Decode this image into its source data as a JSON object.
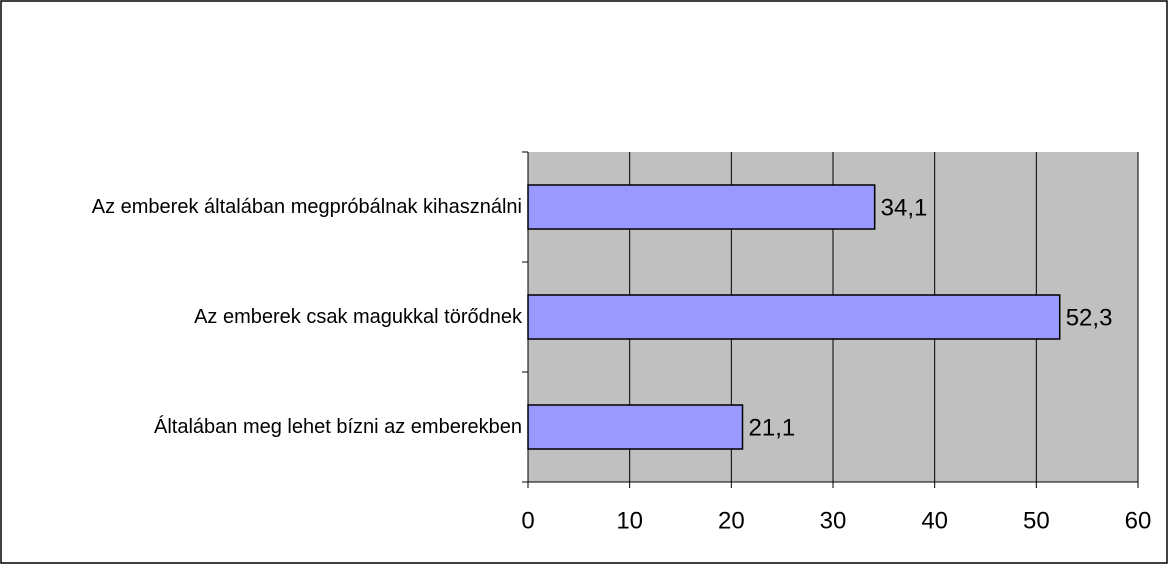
{
  "chart_data": {
    "type": "hbar",
    "categories": [
      "Az emberek általában megpróbálnak kihasználni",
      "Az emberek csak magukkal törődnek",
      "Általában meg lehet bízni az emberekben"
    ],
    "values": [
      34.1,
      52.3,
      21.1
    ],
    "value_labels": [
      "34,1",
      "52,3",
      "21,1"
    ],
    "color": "#9999ff",
    "xlim": [
      0,
      60
    ],
    "xticks": [
      0,
      10,
      20,
      30,
      40,
      50,
      60
    ],
    "grid": true
  }
}
